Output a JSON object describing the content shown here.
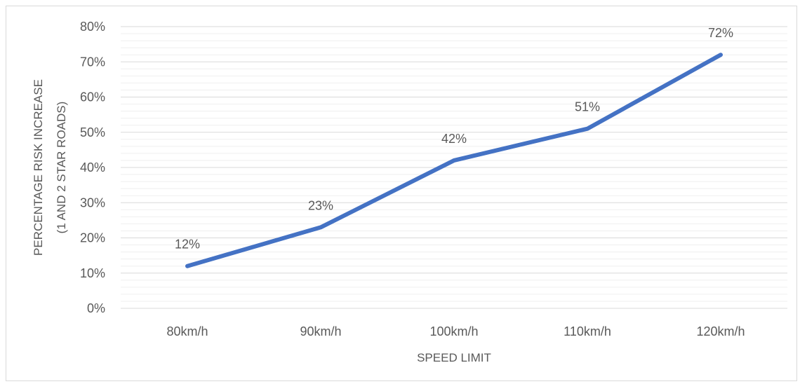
{
  "colors": {
    "series": "#4472C4",
    "major_grid": "#d9d9d9",
    "minor_grid": "#efefef",
    "text": "#595959"
  },
  "chart_data": {
    "type": "line",
    "categories": [
      "80km/h",
      "90km/h",
      "100km/h",
      "110km/h",
      "120km/h"
    ],
    "series": [
      {
        "values": [
          12,
          23,
          42,
          51,
          72
        ]
      }
    ],
    "data_labels": [
      "12%",
      "23%",
      "42%",
      "51%",
      "72%"
    ],
    "xlabel": "SPEED LIMIT",
    "ylabel_lines": [
      "PERCENTAGE RISK INCREASE",
      "(1 AND 2 STAR ROADS)"
    ],
    "ylim": [
      0,
      80
    ],
    "y_ticks": [
      0,
      10,
      20,
      30,
      40,
      50,
      60,
      70,
      80
    ],
    "y_tick_labels": [
      "0%",
      "10%",
      "20%",
      "30%",
      "40%",
      "50%",
      "60%",
      "70%",
      "80%"
    ],
    "grid": "major and minor horizontal",
    "legend": "none"
  }
}
